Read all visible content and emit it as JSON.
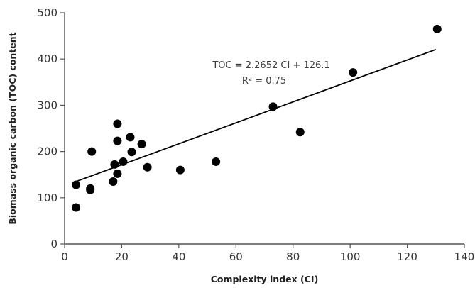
{
  "chart_data": {
    "type": "scatter",
    "title": "",
    "xlabel": "Complexity index (CI)",
    "ylabel": "Biomass organic carbon (TOC) content",
    "xlim": [
      0,
      140
    ],
    "ylim": [
      0,
      500
    ],
    "xticks": [
      0,
      20,
      40,
      60,
      80,
      100,
      120,
      140
    ],
    "yticks": [
      0,
      100,
      200,
      300,
      400,
      500
    ],
    "grid": false,
    "legend": "none",
    "points": [
      {
        "x": 4,
        "y": 128
      },
      {
        "x": 4,
        "y": 79
      },
      {
        "x": 9,
        "y": 120
      },
      {
        "x": 9,
        "y": 117
      },
      {
        "x": 9.5,
        "y": 200
      },
      {
        "x": 17,
        "y": 135
      },
      {
        "x": 17.5,
        "y": 172
      },
      {
        "x": 18.5,
        "y": 260
      },
      {
        "x": 18.5,
        "y": 223
      },
      {
        "x": 18.5,
        "y": 152
      },
      {
        "x": 20.5,
        "y": 178
      },
      {
        "x": 23,
        "y": 231
      },
      {
        "x": 23.5,
        "y": 199
      },
      {
        "x": 27,
        "y": 216
      },
      {
        "x": 29,
        "y": 166
      },
      {
        "x": 40.5,
        "y": 160
      },
      {
        "x": 53,
        "y": 178
      },
      {
        "x": 73,
        "y": 297
      },
      {
        "x": 82.5,
        "y": 242
      },
      {
        "x": 101,
        "y": 371
      },
      {
        "x": 130.5,
        "y": 465
      }
    ],
    "trendline": {
      "slope": 2.2652,
      "intercept": 126.1,
      "x_start": 4,
      "x_end": 130
    },
    "annotations": {
      "equation": "TOC = 2.2652 CI + 126.1",
      "r_squared": "R² = 0.75"
    },
    "colors": {
      "points": "#000000",
      "axes": "#555555",
      "trendline": "#000000"
    }
  }
}
